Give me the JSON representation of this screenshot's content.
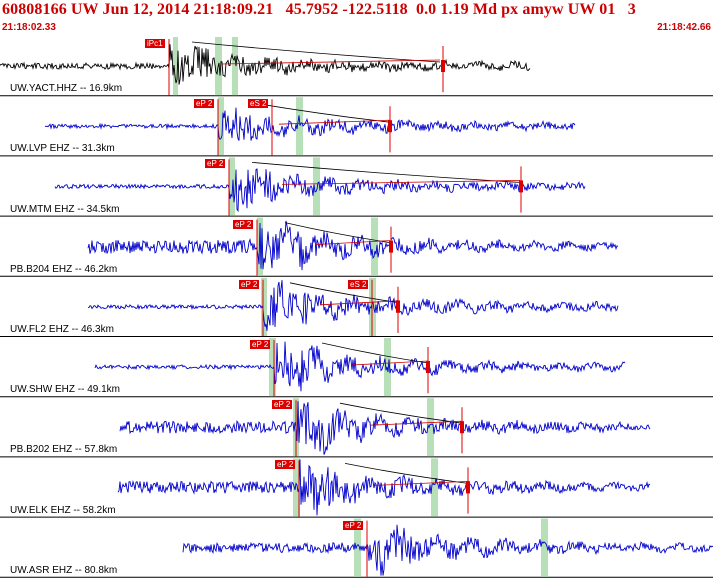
{
  "header": {
    "title": "60808166 UW Jun 12, 2014 21:18:09.21   45.7952 -122.5118  0.0 1.19 Md px amyw UW 01   3",
    "time_start": "21:18:02.33",
    "time_end": "21:18:42.66"
  },
  "colors": {
    "header_text": "#cc0000",
    "trace_primary": "#000000",
    "trace": "#0000cc",
    "pick_marker": "#dd0000",
    "window_band": "#b8e0b8",
    "coda_curve": "#000000",
    "coda_fit": "#cc0000"
  },
  "traces": [
    {
      "label": "UW.YACT.HHZ -- 16.9km",
      "picks": [
        "iPc1"
      ],
      "primary": true
    },
    {
      "label": "UW.LVP EHZ -- 31.3km",
      "picks": [
        "eP 2",
        "eS 2"
      ]
    },
    {
      "label": "UW.MTM EHZ -- 34.5km",
      "picks": [
        "eP 2"
      ]
    },
    {
      "label": "PB.B204 EHZ -- 46.2km",
      "picks": [
        "eP 2"
      ]
    },
    {
      "label": "UW.FL2 EHZ -- 46.3km",
      "picks": [
        "eP 2",
        "eS 2"
      ]
    },
    {
      "label": "UW.SHW EHZ -- 49.1km",
      "picks": [
        "eP 2"
      ]
    },
    {
      "label": "PB.B202 EHZ -- 57.8km",
      "picks": [
        "eP 2"
      ]
    },
    {
      "label": "UW.ELK EHZ -- 58.2km",
      "picks": [
        "eP 2"
      ]
    },
    {
      "label": "UW.ASR EHZ -- 80.8km",
      "picks": [
        "eP 2"
      ]
    }
  ]
}
